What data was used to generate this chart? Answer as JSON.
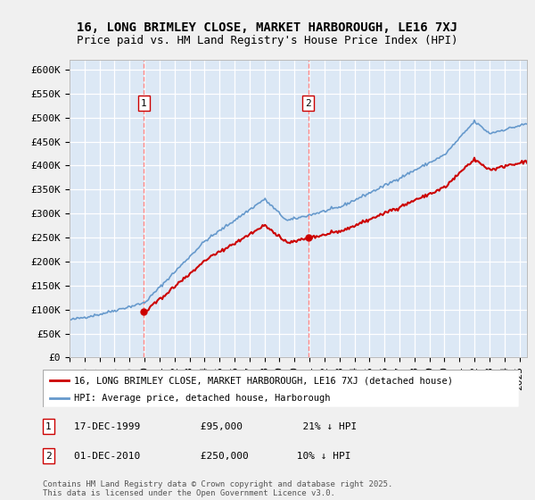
{
  "title": "16, LONG BRIMLEY CLOSE, MARKET HARBOROUGH, LE16 7XJ",
  "subtitle": "Price paid vs. HM Land Registry's House Price Index (HPI)",
  "ylabel_ticks": [
    "£0",
    "£50K",
    "£100K",
    "£150K",
    "£200K",
    "£250K",
    "£300K",
    "£350K",
    "£400K",
    "£450K",
    "£500K",
    "£550K",
    "£600K"
  ],
  "ytick_values": [
    0,
    50000,
    100000,
    150000,
    200000,
    250000,
    300000,
    350000,
    400000,
    450000,
    500000,
    550000,
    600000
  ],
  "ylim": [
    0,
    620000
  ],
  "xlim_start": 1995.0,
  "xlim_end": 2025.5,
  "background_color": "#dce8f5",
  "grid_color": "#ffffff",
  "hpi_color": "#6699cc",
  "price_color": "#cc0000",
  "sale1_x": 1999.96,
  "sale1_y": 95000,
  "sale2_x": 2010.92,
  "sale2_y": 250000,
  "legend_label1": "16, LONG BRIMLEY CLOSE, MARKET HARBOROUGH, LE16 7XJ (detached house)",
  "legend_label2": "HPI: Average price, detached house, Harborough",
  "copyright": "Contains HM Land Registry data © Crown copyright and database right 2025.\nThis data is licensed under the Open Government Licence v3.0.",
  "title_fontsize": 10,
  "subtitle_fontsize": 9,
  "tick_fontsize": 8,
  "vline_color": "#ff8888",
  "fig_bg": "#f0f0f0"
}
